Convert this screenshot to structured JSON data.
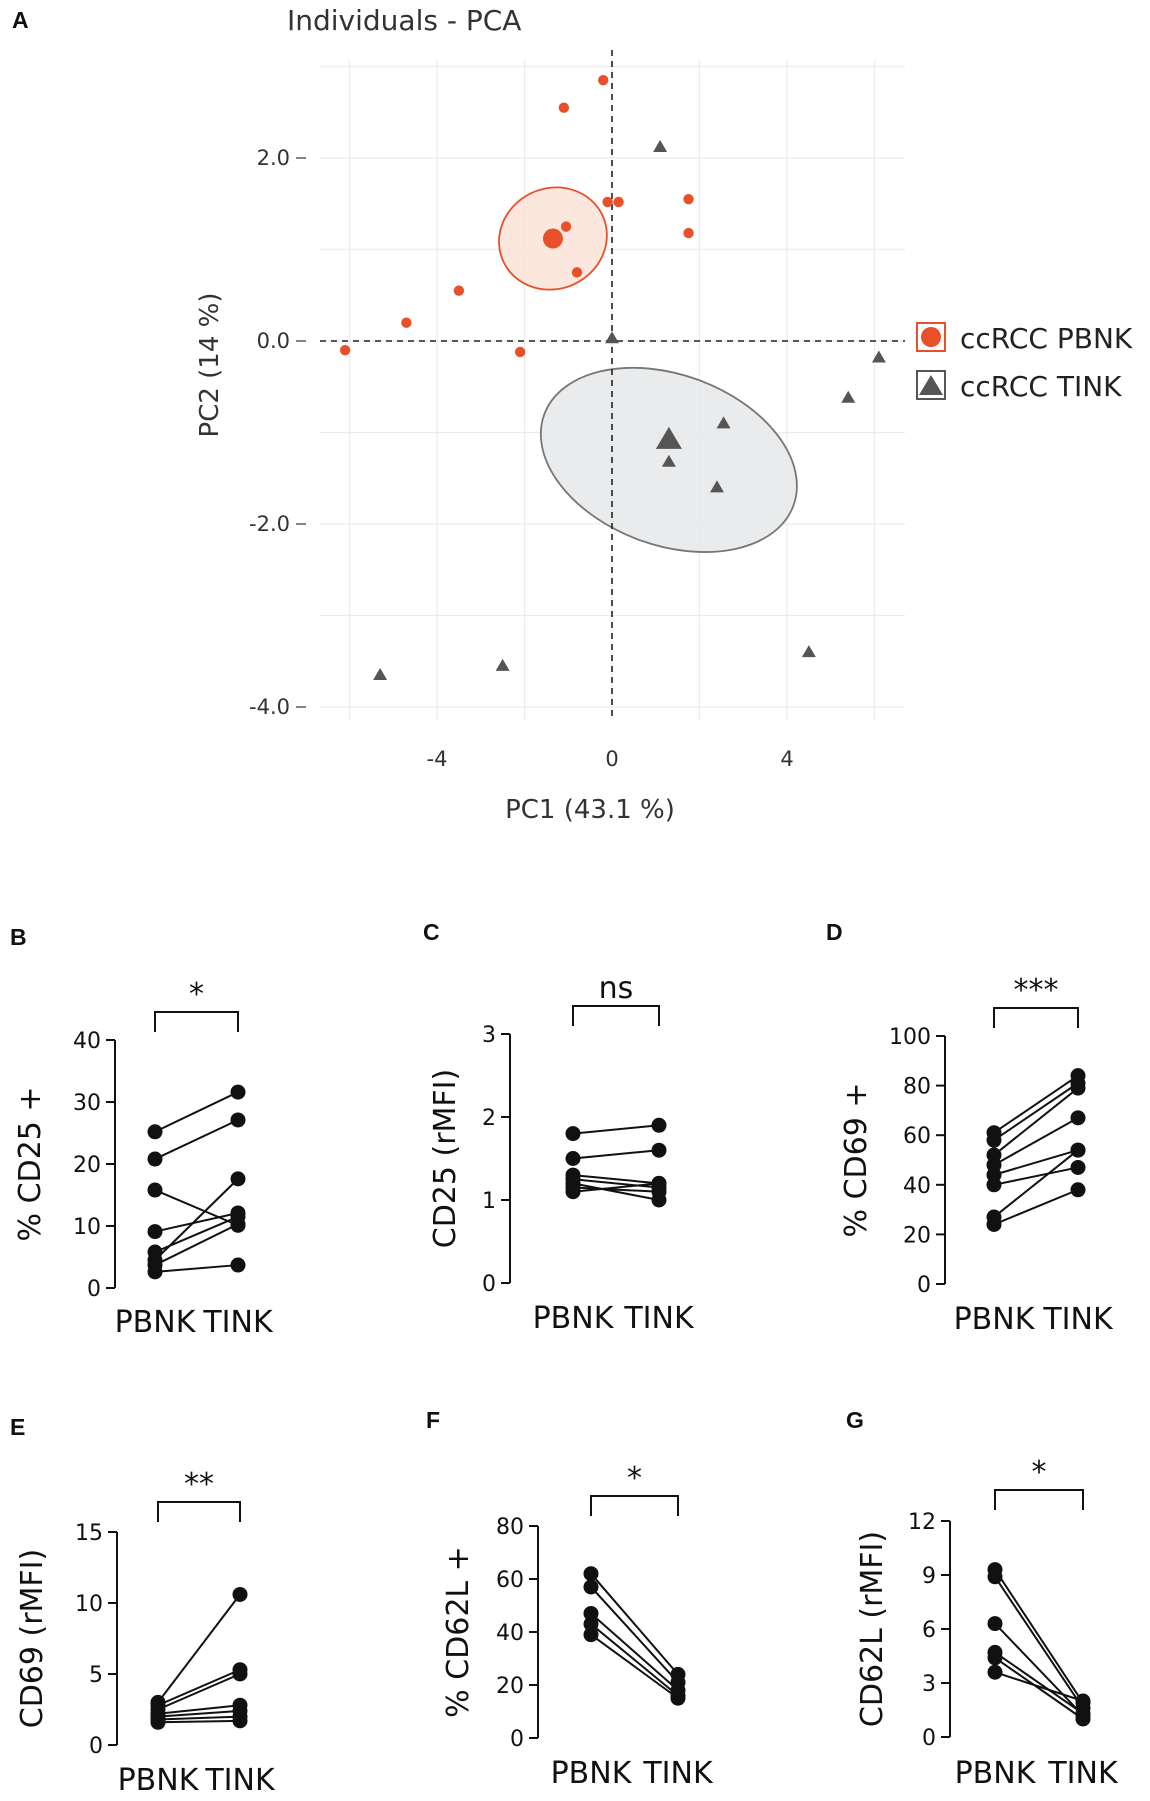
{
  "figure": {
    "panels": {
      "A": "A",
      "B": "B",
      "C": "C",
      "D": "D",
      "E": "E",
      "F": "F",
      "G": "G"
    }
  },
  "chart_data": [
    {
      "panel": "A",
      "type": "scatter",
      "title": "Individuals - PCA",
      "xlabel": "PC1 (43.1 %)",
      "ylabel": "PC2 (14 %)",
      "xlim": [
        -6.5,
        6.8
      ],
      "ylim": [
        -4.2,
        3.1
      ],
      "xticks": [
        -4,
        0,
        4
      ],
      "xtick_labels": [
        "-4",
        "0",
        "4"
      ],
      "yticks": [
        -4,
        -2,
        0,
        2
      ],
      "ytick_labels": [
        "-4.0",
        "-2.0",
        "0.0",
        "2.0"
      ],
      "colors": {
        "pbnk": "#e8502a",
        "tink": "#555555",
        "ellipse_pbnk_fill": "#fbe3d9",
        "ellipse_tink_fill": "#e6e8e9"
      },
      "legend": [
        "ccRCC PBNK",
        "ccRCC TINK"
      ],
      "series": [
        {
          "name": "ccRCC PBNK",
          "marker": "circle",
          "points": [
            [
              -0.2,
              2.85
            ],
            [
              -1.1,
              2.55
            ],
            [
              -0.1,
              1.52
            ],
            [
              0.15,
              1.52
            ],
            [
              1.75,
              1.55
            ],
            [
              1.75,
              1.18
            ],
            [
              -1.35,
              1.12
            ],
            [
              -1.05,
              1.25
            ],
            [
              -0.8,
              0.75
            ],
            [
              -3.5,
              0.55
            ],
            [
              -4.7,
              0.2
            ],
            [
              -6.1,
              -0.1
            ],
            [
              -2.1,
              -0.12
            ]
          ],
          "centroid": [
            -1.35,
            1.12
          ],
          "ellipse": {
            "cx": -1.35,
            "cy": 1.12,
            "rx": 1.25,
            "ry": 0.55,
            "rotation_deg": -25
          }
        },
        {
          "name": "ccRCC TINK",
          "marker": "triangle",
          "points": [
            [
              1.1,
              2.12
            ],
            [
              0.0,
              0.03
            ],
            [
              6.1,
              -0.18
            ],
            [
              5.4,
              -0.62
            ],
            [
              2.55,
              -0.9
            ],
            [
              1.3,
              -1.32
            ],
            [
              2.4,
              -1.6
            ],
            [
              4.5,
              -3.4
            ],
            [
              -2.5,
              -3.55
            ],
            [
              -5.3,
              -3.65
            ]
          ],
          "centroid": [
            1.3,
            -1.08
          ],
          "ellipse": {
            "cx": 1.3,
            "cy": -1.3,
            "rx": 1.95,
            "ry": 1.45,
            "rotation_deg": -70
          }
        }
      ]
    },
    {
      "panel": "B",
      "type": "line",
      "ylabel": "% CD25 +",
      "categories": [
        "PBNK",
        "TINK"
      ],
      "yticks": [
        0,
        10,
        20,
        30,
        40
      ],
      "ylim": [
        0,
        40
      ],
      "significance": "*",
      "pairs": [
        [
          25.2,
          31.6
        ],
        [
          20.8,
          27.1
        ],
        [
          15.8,
          10.1
        ],
        [
          9.1,
          12.1
        ],
        [
          5.8,
          11.5
        ],
        [
          4.5,
          17.6
        ],
        [
          3.7,
          10.3
        ],
        [
          2.6,
          3.7
        ]
      ]
    },
    {
      "panel": "C",
      "type": "line",
      "ylabel": "CD25 (rMFI)",
      "categories": [
        "PBNK",
        "TINK"
      ],
      "yticks": [
        0,
        1,
        2,
        3
      ],
      "ylim": [
        0,
        3
      ],
      "significance": "ns",
      "pairs": [
        [
          1.8,
          1.9
        ],
        [
          1.5,
          1.6
        ],
        [
          1.3,
          1.2
        ],
        [
          1.25,
          1.15
        ],
        [
          1.2,
          1.0
        ],
        [
          1.15,
          1.1
        ],
        [
          1.1,
          1.2
        ]
      ]
    },
    {
      "panel": "D",
      "type": "line",
      "ylabel": "% CD69 +",
      "categories": [
        "PBNK",
        "TINK"
      ],
      "yticks": [
        0,
        20,
        40,
        60,
        80,
        100
      ],
      "ylim": [
        0,
        100
      ],
      "significance": "***",
      "pairs": [
        [
          61,
          84
        ],
        [
          58,
          81
        ],
        [
          52,
          79
        ],
        [
          48,
          67
        ],
        [
          44,
          54
        ],
        [
          40,
          47
        ],
        [
          27,
          54
        ],
        [
          24,
          38
        ]
      ]
    },
    {
      "panel": "E",
      "type": "line",
      "ylabel": "CD69 (rMFI)",
      "categories": [
        "PBNK",
        "TINK"
      ],
      "yticks": [
        0,
        5,
        10,
        15
      ],
      "ylim": [
        0,
        15
      ],
      "significance": "**",
      "pairs": [
        [
          3.0,
          10.6
        ],
        [
          2.8,
          5.3
        ],
        [
          2.5,
          5.0
        ],
        [
          2.2,
          2.8
        ],
        [
          2.0,
          2.4
        ],
        [
          1.8,
          2.0
        ],
        [
          1.6,
          1.7
        ]
      ]
    },
    {
      "panel": "F",
      "type": "line",
      "ylabel": "% CD62L +",
      "categories": [
        "PBNK",
        "TINK"
      ],
      "yticks": [
        0,
        20,
        40,
        60,
        80
      ],
      "ylim": [
        0,
        80
      ],
      "significance": "*",
      "pairs": [
        [
          62,
          24
        ],
        [
          57,
          21
        ],
        [
          47,
          18
        ],
        [
          43,
          16
        ],
        [
          39,
          15
        ]
      ]
    },
    {
      "panel": "G",
      "type": "line",
      "ylabel": "CD62L (rMFI)",
      "categories": [
        "PBNK",
        "TINK"
      ],
      "yticks": [
        0,
        3,
        6,
        9,
        12
      ],
      "ytick_labels": [
        "0",
        "3",
        "6",
        "9",
        "12"
      ],
      "ylim": [
        0,
        12
      ],
      "significance": "*",
      "pairs": [
        [
          9.3,
          1.9
        ],
        [
          8.9,
          1.6
        ],
        [
          6.3,
          1.2
        ],
        [
          4.7,
          1.3
        ],
        [
          4.4,
          1.0
        ],
        [
          3.6,
          2.0
        ]
      ]
    }
  ]
}
